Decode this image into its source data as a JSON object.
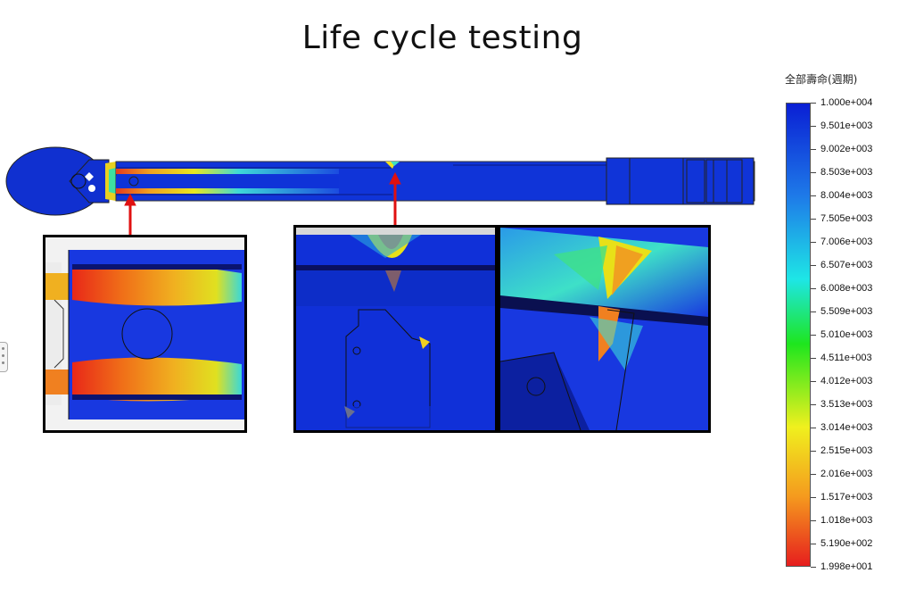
{
  "title": "Life cycle testing",
  "legend": {
    "title": "全部壽命(週期)",
    "labels": [
      "1.000e+004",
      "9.501e+003",
      "9.002e+003",
      "8.503e+003",
      "8.004e+003",
      "7.505e+003",
      "7.006e+003",
      "6.507e+003",
      "6.008e+003",
      "5.509e+003",
      "5.010e+003",
      "4.511e+003",
      "4.012e+003",
      "3.513e+003",
      "3.014e+003",
      "2.515e+003",
      "2.016e+003",
      "1.517e+003",
      "1.018e+003",
      "5.190e+002",
      "1.998e+001"
    ],
    "colors": {
      "max": "#0a1fd4",
      "high": "#1e7ae8",
      "cyan": "#1ee6e6",
      "green": "#1ee61e",
      "yellow": "#f0f01e",
      "orange": "#f59a1e",
      "min": "#e61e1e"
    }
  },
  "annotations": {
    "arrow_color": "#e01010"
  }
}
